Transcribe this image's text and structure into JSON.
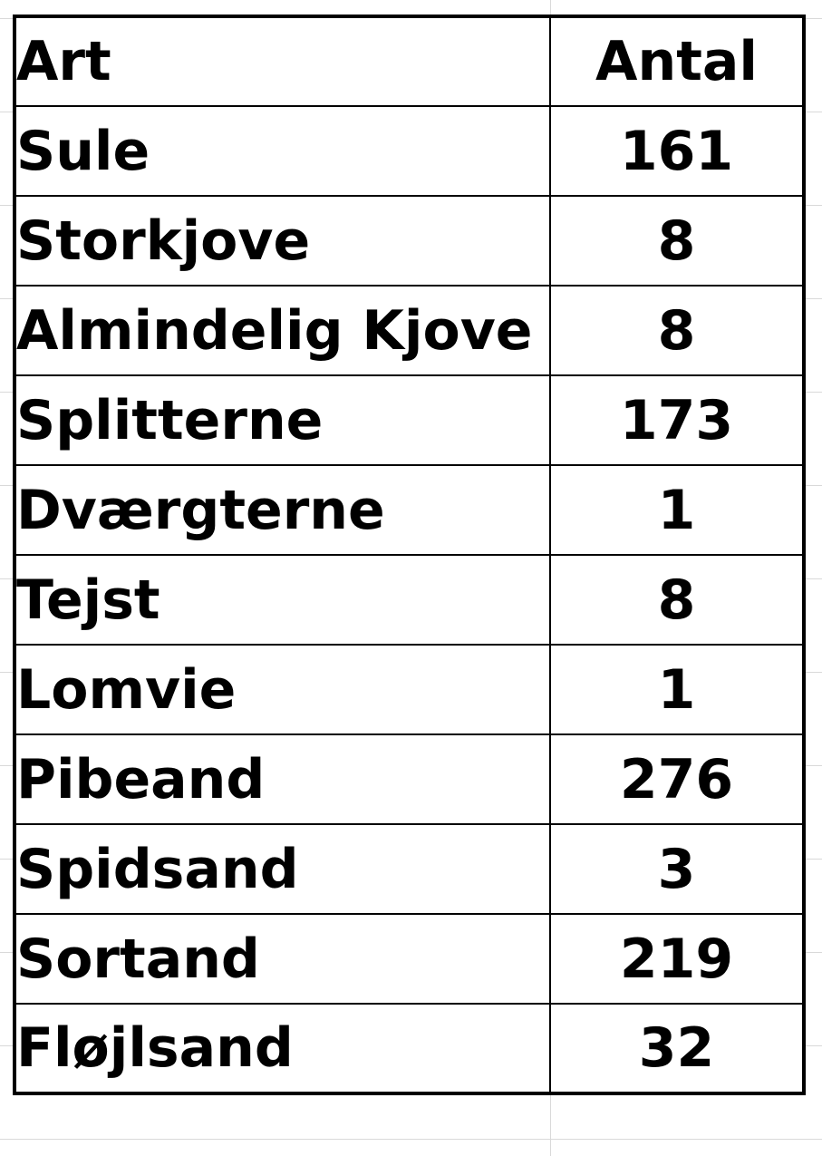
{
  "table": {
    "headers": {
      "art": "Art",
      "antal": "Antal"
    },
    "rows": [
      {
        "art": "Sule",
        "antal": "161"
      },
      {
        "art": "Storkjove",
        "antal": "8"
      },
      {
        "art": "Almindelig Kjove",
        "antal": "8"
      },
      {
        "art": "Splitterne",
        "antal": "173"
      },
      {
        "art": "Dværgterne",
        "antal": "1"
      },
      {
        "art": "Tejst",
        "antal": "8"
      },
      {
        "art": "Lomvie",
        "antal": "1"
      },
      {
        "art": "Pibeand",
        "antal": "276"
      },
      {
        "art": "Spidsand",
        "antal": "3"
      },
      {
        "art": "Sortand",
        "antal": "219"
      },
      {
        "art": "Fløjlsand",
        "antal": "32"
      }
    ]
  }
}
